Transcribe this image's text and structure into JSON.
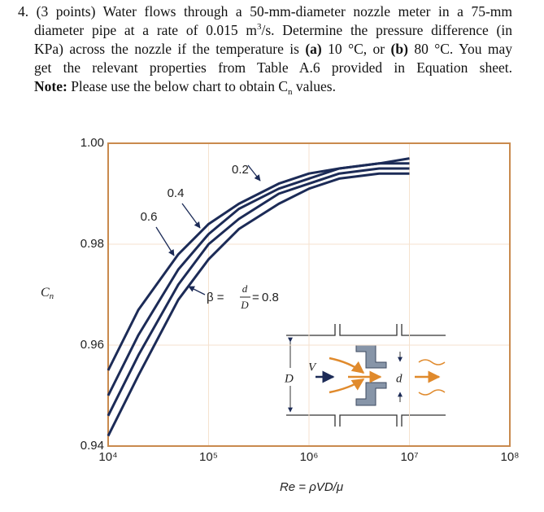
{
  "question": {
    "lines": [
      {
        "runs": [
          {
            "text": "4. (3 points) Water flows through a 50-mm-diameter nozzle meter in a 75-mm"
          }
        ]
      },
      {
        "runs": [
          {
            "text": "diameter pipe at a rate of 0.015 m"
          },
          {
            "text": "3",
            "style": "sup"
          },
          {
            "text": "/s. Determine the pressure difference (in"
          }
        ]
      },
      {
        "runs": [
          {
            "text": "KPa) across the nozzle if the temperature is "
          },
          {
            "text": "(a)",
            "style": "bold"
          },
          {
            "text": " 10 °C, or "
          },
          {
            "text": "(b)",
            "style": "bold"
          },
          {
            "text": " 80 °C. You may"
          }
        ]
      },
      {
        "runs": [
          {
            "text": "get the relevant properties from Table A.6 provided in Equation sheet."
          }
        ]
      },
      {
        "runs": [
          {
            "text": "Note:",
            "style": "bold"
          },
          {
            "text": " Please use the below chart to obtain C"
          },
          {
            "text": "n",
            "style": "sub"
          },
          {
            "text": " values."
          }
        ]
      }
    ]
  },
  "chart_data": {
    "type": "line",
    "y_label": {
      "main": "C",
      "sub": "n"
    },
    "x_label": "Re = ρVD/μ",
    "x": [
      10000,
      20000,
      50000,
      100000,
      200000,
      500000,
      1000000,
      2000000,
      5000000,
      10000000
    ],
    "xscale": "log",
    "xlim": [
      10000,
      100000000
    ],
    "xticks": [
      {
        "value": 10000,
        "label": "10⁴"
      },
      {
        "value": 100000,
        "label": "10⁵"
      },
      {
        "value": 1000000,
        "label": "10⁶"
      },
      {
        "value": 10000000,
        "label": "10⁷"
      },
      {
        "value": 100000000,
        "label": "10⁸"
      }
    ],
    "ylim": [
      0.94,
      1.0
    ],
    "yticks": [
      0.94,
      0.96,
      0.98,
      {
        "value": 1.0,
        "label": "1.00"
      }
    ],
    "grid": true,
    "series": [
      {
        "name": "0.2",
        "color": "#1c2b57",
        "values": [
          0.955,
          0.967,
          0.978,
          0.984,
          0.988,
          0.992,
          0.994,
          0.995,
          0.996,
          0.997
        ]
      },
      {
        "name": "0.4",
        "color": "#1c2b57",
        "values": [
          0.95,
          0.962,
          0.975,
          0.982,
          0.987,
          0.991,
          0.993,
          0.995,
          0.996,
          0.996
        ]
      },
      {
        "name": "0.6",
        "color": "#1c2b57",
        "values": [
          0.946,
          0.958,
          0.972,
          0.98,
          0.985,
          0.99,
          0.992,
          0.994,
          0.995,
          0.995
        ]
      },
      {
        "name": "0.8",
        "color": "#1c2b57",
        "values": [
          0.942,
          0.954,
          0.969,
          0.977,
          0.983,
          0.988,
          0.991,
          0.993,
          0.994,
          0.994
        ]
      }
    ],
    "beta_label": {
      "prefix": "β =",
      "numerator": "d",
      "denominator": "D",
      "equals": "="
    },
    "diagram": {
      "velocity": "V",
      "pipe_diameter": "D",
      "nozzle_diameter": "d"
    }
  }
}
